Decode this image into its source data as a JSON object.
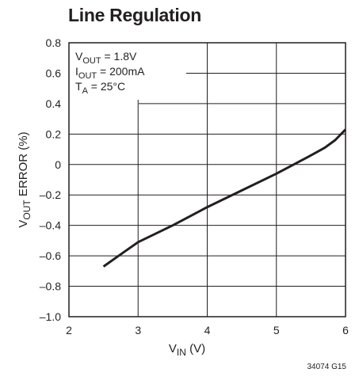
{
  "title": "Line Regulation",
  "figure_code": "34074 G15",
  "annotations": [
    {
      "main": "V",
      "sub": "OUT",
      "rest": " = 1.8V"
    },
    {
      "main": "I",
      "sub": "OUT",
      "rest": " = 200mA"
    },
    {
      "main": "T",
      "sub": "A",
      "rest": " = 25°C"
    }
  ],
  "chart_data": {
    "type": "line",
    "title": "Line Regulation",
    "xlabel": {
      "main": "V",
      "sub": "IN",
      "rest": " (V)"
    },
    "ylabel": {
      "main": "V",
      "sub": "OUT",
      "rest": " ERROR (%)"
    },
    "xlim": [
      2,
      6
    ],
    "ylim": [
      -1.0,
      0.8
    ],
    "x_ticks": [
      2,
      3,
      4,
      5,
      6
    ],
    "x_tick_labels": [
      "2",
      "3",
      "4",
      "5",
      "6"
    ],
    "y_ticks": [
      0.8,
      0.6,
      0.4,
      0.2,
      0,
      -0.2,
      -0.4,
      -0.6,
      -0.8,
      -1.0
    ],
    "y_tick_labels": [
      "0.8",
      "0.6",
      "0.4",
      "0.2",
      "0",
      "–0.2",
      "–0.4",
      "–0.6",
      "–0.8",
      "–1.0"
    ],
    "grid": true,
    "line_color": "#231f20",
    "series": [
      {
        "x": [
          2.5,
          2.75,
          3.0,
          3.5,
          4.0,
          4.5,
          5.0,
          5.25,
          5.5,
          5.7,
          5.85,
          6.0
        ],
        "y": [
          -0.67,
          -0.59,
          -0.51,
          -0.4,
          -0.28,
          -0.17,
          -0.06,
          0.0,
          0.06,
          0.11,
          0.16,
          0.23
        ]
      }
    ]
  }
}
